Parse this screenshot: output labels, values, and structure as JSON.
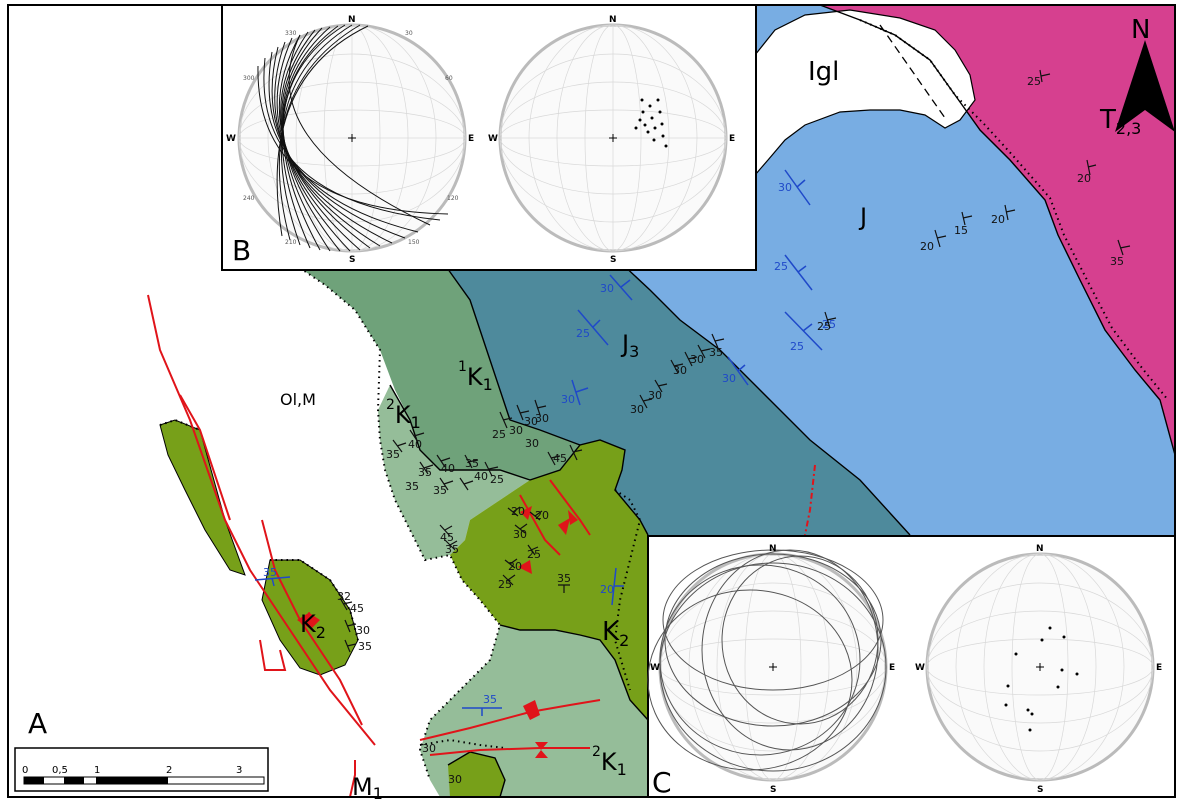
{
  "units": {
    "triassic": {
      "label": "T",
      "sub": "2,3",
      "color": "#d6408f"
    },
    "jurassic": {
      "label": "J",
      "color": "#78ade3"
    },
    "upper_jurassic": {
      "label": "J",
      "sub": "3",
      "color": "#4e8a9c"
    },
    "lower_cretaceous_1": {
      "label": "K",
      "pre": "1",
      "sub": "1",
      "color": "#6fa27a"
    },
    "lower_cretaceous_2a": {
      "label": "K",
      "pre": "2",
      "sub": "1",
      "color": "#95bd99"
    },
    "lower_cretaceous_2b": {
      "label": "K",
      "pre": "2",
      "sub": "1",
      "color": "#95bd99"
    },
    "upper_cretaceous_a": {
      "label": "K",
      "sub": "2",
      "color": "#77a019"
    },
    "upper_cretaceous_b": {
      "label": "K",
      "sub": "2",
      "color": "#77a019"
    },
    "oligo_miocene": {
      "label": "Ol,M"
    },
    "intrusion": {
      "label": "Igl",
      "color": "#ffffff"
    },
    "miocene": {
      "label": "M",
      "sub": "1"
    }
  },
  "panel_labels": {
    "a": "A",
    "b": "B",
    "c": "C"
  },
  "north_arrow": {
    "label": "N"
  },
  "scale_bar": {
    "ticks": [
      "0",
      "0,5",
      "1",
      "2",
      "3"
    ]
  },
  "stereonet": {
    "cardinals": {
      "n": "N",
      "s": "S",
      "e": "E",
      "w": "W"
    },
    "degree_ticks": [
      "30",
      "60",
      "120",
      "150",
      "210",
      "240",
      "300",
      "330"
    ]
  },
  "dip_values": {
    "black": [
      "25",
      "20",
      "20",
      "15",
      "20",
      "35",
      "25",
      "35",
      "30",
      "30",
      "30",
      "30",
      "30",
      "30",
      "25",
      "30",
      "30",
      "30",
      "45",
      "30",
      "40",
      "35",
      "40",
      "35",
      "35",
      "35",
      "35",
      "40",
      "25",
      "45",
      "35",
      "20",
      "20",
      "30",
      "25",
      "20",
      "25",
      "35",
      "32",
      "45",
      "30",
      "35",
      "30",
      "30"
    ],
    "blue": [
      "30",
      "30",
      "25",
      "25",
      "30",
      "30",
      "25",
      "25",
      "20",
      "35",
      "35"
    ]
  },
  "colors": {
    "fault": "#e0141a",
    "bedding_blue": "#1f49c9",
    "bedding_black": "#111111",
    "frame": "#000000"
  }
}
